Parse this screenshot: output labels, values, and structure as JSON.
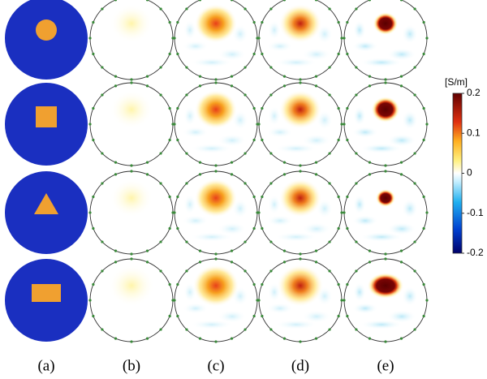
{
  "colorbar": {
    "unit": "[S/m]",
    "lim": [
      -0.2,
      0.2
    ],
    "ticks": [
      0.2,
      0.1,
      0,
      -0.1,
      -0.2
    ]
  },
  "column_labels": [
    "(a)",
    "(b)",
    "(c)",
    "(d)",
    "(e)"
  ]
}
